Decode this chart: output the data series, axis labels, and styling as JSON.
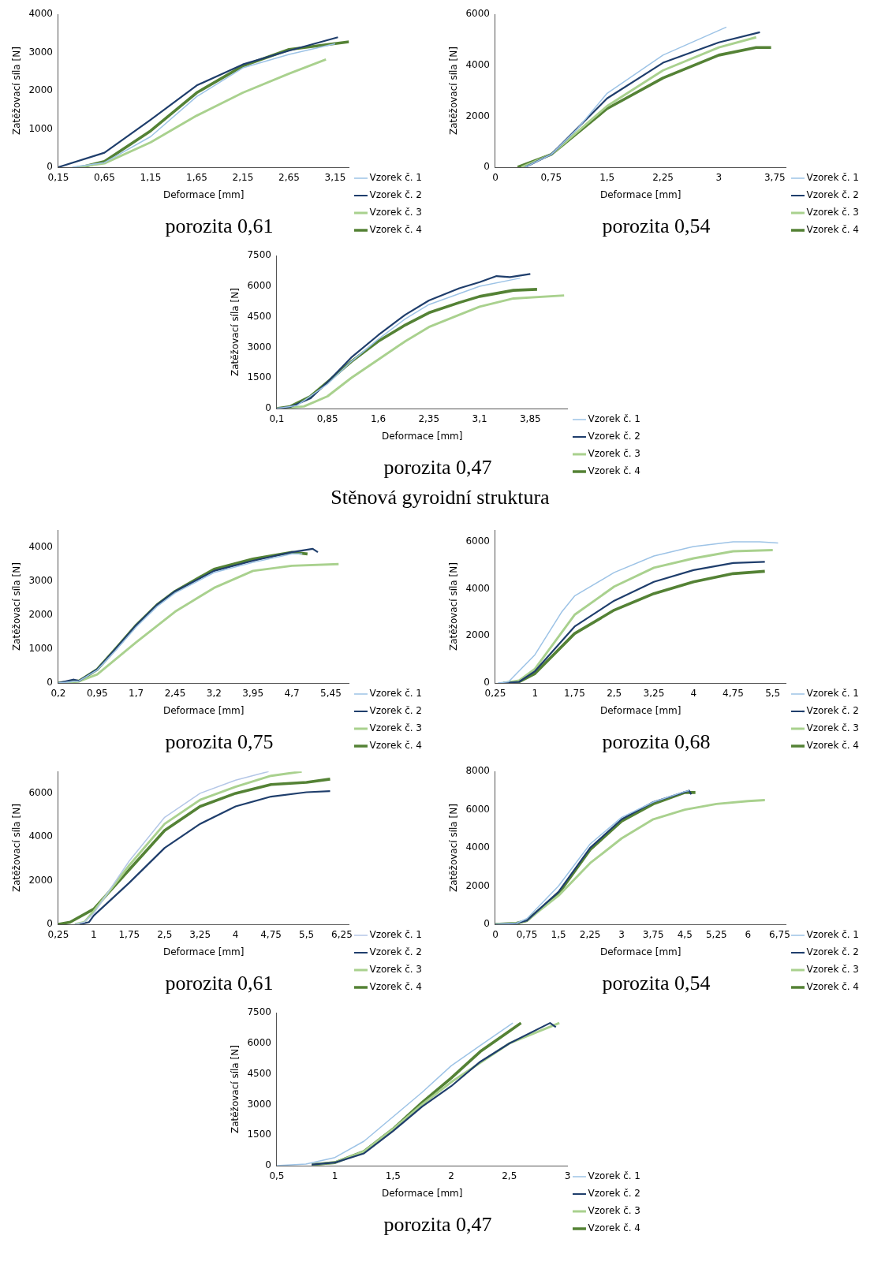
{
  "chart_data": [
    {
      "type": "line",
      "title": "porozita 0,61",
      "xlabel": "Deformace [mm]",
      "ylabel": "Zatěžovací síla [N]",
      "xlim": [
        0.15,
        3.3
      ],
      "xticks": [
        {
          "value": 0.15,
          "label": "0,15"
        },
        {
          "value": 0.65,
          "label": "0,65"
        },
        {
          "value": 1.15,
          "label": "1,15"
        },
        {
          "value": 1.65,
          "label": "1,65"
        },
        {
          "value": 2.15,
          "label": "2,15"
        },
        {
          "value": 2.65,
          "label": "2,65"
        },
        {
          "value": 3.15,
          "label": "3,15"
        }
      ],
      "ylim": [
        0,
        4000
      ],
      "yticks": [
        0,
        1000,
        2000,
        3000,
        4000
      ],
      "grid": false,
      "legend": "right",
      "marker": "none",
      "series": [
        {
          "name": "Vzorek č. 1",
          "color": "#9dc3e6",
          "x": [
            0.3,
            0.65,
            1.15,
            1.65,
            2.15,
            2.65,
            3.15
          ],
          "values": [
            0,
            120,
            800,
            1850,
            2600,
            2950,
            3230
          ]
        },
        {
          "name": "Vzorek č. 2",
          "color": "#1f3e6c",
          "x": [
            0.15,
            0.65,
            1.15,
            1.65,
            2.15,
            2.65,
            3.18
          ],
          "values": [
            0,
            380,
            1240,
            2140,
            2690,
            3050,
            3400
          ]
        },
        {
          "name": "Vzorek č. 3",
          "color": "#a9d18e",
          "x": [
            0.35,
            0.65,
            1.15,
            1.65,
            2.15,
            2.65,
            3.05
          ],
          "values": [
            0,
            100,
            650,
            1350,
            1950,
            2450,
            2820
          ]
        },
        {
          "name": "Vzorek č. 4",
          "color": "#548235",
          "x": [
            0.4,
            0.65,
            1.15,
            1.65,
            2.15,
            2.65,
            3.3
          ],
          "values": [
            0,
            150,
            950,
            1950,
            2650,
            3080,
            3280
          ]
        }
      ]
    },
    {
      "type": "line",
      "title": "porozita 0,54",
      "xlabel": "Deformace [mm]",
      "ylabel": "Zatěžovací síla [N]",
      "xlim": [
        0,
        3.9
      ],
      "xticks": [
        0,
        {
          "value": 0.75,
          "label": "0,75"
        },
        {
          "value": 1.5,
          "label": "1,5"
        },
        {
          "value": 2.25,
          "label": "2,25"
        },
        3,
        {
          "value": 3.75,
          "label": "3,75"
        }
      ],
      "ylim": [
        0,
        6000
      ],
      "yticks": [
        0,
        2000,
        4000,
        6000
      ],
      "grid": false,
      "legend": "right",
      "marker": "none",
      "series": [
        {
          "name": "Vzorek č. 1",
          "color": "#9dc3e6",
          "x": [
            0.4,
            0.75,
            1.1,
            1.5,
            2.25,
            3.1
          ],
          "values": [
            0,
            500,
            1500,
            2900,
            4400,
            5500
          ]
        },
        {
          "name": "Vzorek č. 2",
          "color": "#1f3e6c",
          "x": [
            0.4,
            0.75,
            1.5,
            2.25,
            3,
            3.55
          ],
          "values": [
            0,
            500,
            2700,
            4100,
            4900,
            5300
          ]
        },
        {
          "name": "Vzorek č. 3",
          "color": "#a9d18e",
          "x": [
            0.35,
            0.75,
            1.5,
            2.25,
            3,
            3.5
          ],
          "values": [
            0,
            500,
            2400,
            3800,
            4700,
            5100
          ]
        },
        {
          "name": "Vzorek č. 4",
          "color": "#548235",
          "x": [
            0.3,
            0.75,
            1.5,
            2.25,
            3,
            3.5,
            3.7
          ],
          "values": [
            0,
            500,
            2300,
            3500,
            4400,
            4700,
            4700
          ]
        }
      ]
    },
    {
      "type": "line",
      "title": "porozita 0,47",
      "annotations": [
        "Stěnová gyroidní struktura"
      ],
      "xlabel": "Deformace [mm]",
      "ylabel": "Zatěžovací síla [N]",
      "xlim": [
        0.1,
        4.4
      ],
      "xticks": [
        {
          "value": 0.1,
          "label": "0,1"
        },
        {
          "value": 0.85,
          "label": "0,85"
        },
        {
          "value": 1.6,
          "label": "1,6"
        },
        {
          "value": 2.35,
          "label": "2,35"
        },
        {
          "value": 3.1,
          "label": "3,1"
        },
        {
          "value": 3.85,
          "label": "3,85"
        }
      ],
      "ylim": [
        0,
        7500
      ],
      "yticks": [
        0,
        1500,
        3000,
        4500,
        6000,
        7500
      ],
      "grid": false,
      "legend": "right",
      "marker": "none",
      "series": [
        {
          "name": "Vzorek č. 1",
          "color": "#9dc3e6",
          "x": [
            0.1,
            0.4,
            0.85,
            1.2,
            1.6,
            2,
            2.35,
            3.1,
            3.7
          ],
          "values": [
            0,
            150,
            1200,
            2300,
            3400,
            4400,
            5100,
            6000,
            6400
          ]
        },
        {
          "name": "Vzorek č. 2",
          "color": "#1f3e6c",
          "x": [
            0.1,
            0.3,
            0.6,
            0.85,
            1.2,
            1.6,
            2,
            2.35,
            2.8,
            3.1,
            3.35,
            3.55,
            3.85
          ],
          "values": [
            0,
            80,
            500,
            1300,
            2500,
            3600,
            4600,
            5300,
            5900,
            6200,
            6500,
            6450,
            6600
          ]
        },
        {
          "name": "Vzorek č. 3",
          "color": "#a9d18e",
          "x": [
            0.1,
            0.5,
            0.85,
            1.2,
            1.6,
            2,
            2.35,
            2.8,
            3.1,
            3.6,
            4.35
          ],
          "values": [
            0,
            100,
            600,
            1500,
            2400,
            3300,
            4000,
            4600,
            5000,
            5400,
            5550
          ]
        },
        {
          "name": "Vzorek č. 4",
          "color": "#548235",
          "x": [
            0.1,
            0.3,
            0.6,
            0.85,
            1.2,
            1.6,
            2,
            2.35,
            2.8,
            3.1,
            3.6,
            3.95
          ],
          "values": [
            0,
            100,
            600,
            1300,
            2300,
            3300,
            4100,
            4700,
            5200,
            5500,
            5800,
            5850
          ]
        }
      ]
    },
    {
      "type": "line",
      "title": "porozita 0,75",
      "xlabel": "Deformace [mm]",
      "ylabel": "Zatěžovací síla [N]",
      "xlim": [
        0.2,
        5.8
      ],
      "xticks": [
        {
          "value": 0.2,
          "label": "0,2"
        },
        {
          "value": 0.95,
          "label": "0,95"
        },
        {
          "value": 1.7,
          "label": "1,7"
        },
        {
          "value": 2.45,
          "label": "2,45"
        },
        {
          "value": 3.2,
          "label": "3,2"
        },
        {
          "value": 3.95,
          "label": "3,95"
        },
        {
          "value": 4.7,
          "label": "4,7"
        },
        {
          "value": 5.45,
          "label": "5,45"
        }
      ],
      "ylim": [
        0,
        4500
      ],
      "yticks": [
        0,
        1000,
        2000,
        3000,
        4000
      ],
      "grid": false,
      "legend": "right",
      "marker": "none",
      "series": [
        {
          "name": "Vzorek č. 1",
          "color": "#9dc3e6",
          "x": [
            0.2,
            0.6,
            0.95,
            1.3,
            1.7,
            2.1,
            2.45,
            3.2,
            3.95,
            4.7,
            4.9
          ],
          "values": [
            0,
            60,
            380,
            950,
            1650,
            2250,
            2650,
            3250,
            3550,
            3800,
            3800
          ]
        },
        {
          "name": "Vzorek č. 2",
          "color": "#1f3e6c",
          "x": [
            0.2,
            0.5,
            0.6,
            0.95,
            1.3,
            1.7,
            2.1,
            2.45,
            3.2,
            3.95,
            4.7,
            5.1,
            5.2
          ],
          "values": [
            0,
            100,
            60,
            400,
            1000,
            1700,
            2300,
            2700,
            3300,
            3600,
            3850,
            3950,
            3850
          ]
        },
        {
          "name": "Vzorek č. 3",
          "color": "#a9d18e",
          "x": [
            0.2,
            0.6,
            0.95,
            1.7,
            2.45,
            3.2,
            3.95,
            4.7,
            5.6
          ],
          "values": [
            0,
            50,
            250,
            1200,
            2100,
            2800,
            3300,
            3450,
            3500
          ]
        },
        {
          "name": "Vzorek č. 4",
          "color": "#548235",
          "x": [
            0.2,
            0.6,
            0.95,
            1.3,
            1.7,
            2.1,
            2.45,
            3.2,
            3.95,
            4.7,
            5
          ],
          "values": [
            0,
            60,
            400,
            1000,
            1700,
            2300,
            2700,
            3350,
            3650,
            3850,
            3800
          ]
        }
      ]
    },
    {
      "type": "line",
      "title": "porozita 0,68",
      "xlabel": "Deformace [mm]",
      "ylabel": "Zatěžovací síla [N]",
      "xlim": [
        0.25,
        5.75
      ],
      "xticks": [
        {
          "value": 0.25,
          "label": "0,25"
        },
        1,
        {
          "value": 1.75,
          "label": "1,75"
        },
        {
          "value": 2.5,
          "label": "2,5"
        },
        {
          "value": 3.25,
          "label": "3,25"
        },
        4,
        {
          "value": 4.75,
          "label": "4,75"
        },
        {
          "value": 5.5,
          "label": "5,5"
        }
      ],
      "ylim": [
        0,
        6500
      ],
      "yticks": [
        0,
        2000,
        4000,
        6000
      ],
      "grid": false,
      "legend": "right",
      "marker": "none",
      "series": [
        {
          "name": "Vzorek č. 1",
          "color": "#9dc3e6",
          "x": [
            0.3,
            0.5,
            1,
            1.5,
            1.75,
            2.5,
            3.25,
            4,
            4.75,
            5.25,
            5.6
          ],
          "values": [
            0,
            50,
            1200,
            3000,
            3700,
            4700,
            5400,
            5800,
            6000,
            6000,
            5950
          ]
        },
        {
          "name": "Vzorek č. 2",
          "color": "#1f3e6c",
          "x": [
            0.4,
            0.7,
            1,
            1.75,
            2.5,
            3.25,
            4,
            4.75,
            5.35
          ],
          "values": [
            0,
            50,
            500,
            2400,
            3500,
            4300,
            4800,
            5100,
            5150
          ]
        },
        {
          "name": "Vzorek č. 3",
          "color": "#a9d18e",
          "x": [
            0.4,
            0.7,
            1,
            1.75,
            2.5,
            3.25,
            4,
            4.75,
            5.5
          ],
          "values": [
            0,
            100,
            600,
            2900,
            4100,
            4900,
            5300,
            5600,
            5650
          ]
        },
        {
          "name": "Vzorek č. 4",
          "color": "#548235",
          "x": [
            0.4,
            0.7,
            1,
            1.75,
            2.5,
            3.25,
            4,
            4.75,
            5.35
          ],
          "values": [
            0,
            50,
            400,
            2100,
            3100,
            3800,
            4300,
            4650,
            4750
          ]
        }
      ]
    },
    {
      "type": "line",
      "title": "porozita 0,61",
      "xlabel": "Deformace [mm]",
      "ylabel": "Zatěžovací síla [N]",
      "xlim": [
        0.25,
        6.4
      ],
      "xticks": [
        {
          "value": 0.25,
          "label": "0,25"
        },
        1,
        {
          "value": 1.75,
          "label": "1,75"
        },
        {
          "value": 2.5,
          "label": "2,5"
        },
        {
          "value": 3.25,
          "label": "3,25"
        },
        4,
        {
          "value": 4.75,
          "label": "4,75"
        },
        {
          "value": 5.5,
          "label": "5,5"
        },
        {
          "value": 6.25,
          "label": "6,25"
        }
      ],
      "ylim": [
        0,
        7000
      ],
      "yticks": [
        0,
        2000,
        4000,
        6000
      ],
      "grid": false,
      "legend": "right",
      "marker": "none",
      "series": [
        {
          "name": "Vzorek č. 1",
          "color": "#b4c7e7",
          "x": [
            0.6,
            0.8,
            1,
            1.75,
            2.5,
            3.25,
            4,
            4.7
          ],
          "values": [
            0,
            100,
            500,
            2900,
            4900,
            6000,
            6600,
            7000
          ]
        },
        {
          "name": "Vzorek č. 2",
          "color": "#1f3e6c",
          "x": [
            0.7,
            0.9,
            1,
            1.75,
            2.5,
            3.25,
            4,
            4.75,
            5.5,
            6
          ],
          "values": [
            0,
            100,
            400,
            1900,
            3500,
            4600,
            5400,
            5850,
            6050,
            6100
          ]
        },
        {
          "name": "Vzorek č. 3",
          "color": "#a9d18e",
          "x": [
            0.6,
            0.8,
            1,
            1.75,
            2.5,
            3.25,
            4,
            4.75,
            5.4
          ],
          "values": [
            0,
            100,
            600,
            2700,
            4600,
            5700,
            6300,
            6800,
            7000
          ]
        },
        {
          "name": "Vzorek č. 4",
          "color": "#548235",
          "x": [
            0.25,
            0.5,
            1,
            1.75,
            2.5,
            3.25,
            4,
            4.75,
            5.5,
            6
          ],
          "values": [
            0,
            100,
            700,
            2500,
            4300,
            5400,
            6000,
            6400,
            6500,
            6650
          ]
        }
      ]
    },
    {
      "type": "line",
      "title": "porozita 0,54",
      "xlabel": "Deformace [mm]",
      "ylabel": "Zatěžovací síla [N]",
      "xlim": [
        0,
        6.9
      ],
      "xticks": [
        0,
        {
          "value": 0.75,
          "label": "0,75"
        },
        {
          "value": 1.5,
          "label": "1,5"
        },
        {
          "value": 2.25,
          "label": "2,25"
        },
        3,
        {
          "value": 3.75,
          "label": "3,75"
        },
        {
          "value": 4.5,
          "label": "4,5"
        },
        {
          "value": 5.25,
          "label": "5,25"
        },
        6,
        {
          "value": 6.75,
          "label": "6,75"
        }
      ],
      "ylim": [
        0,
        8000
      ],
      "yticks": [
        0,
        2000,
        4000,
        6000,
        8000
      ],
      "grid": false,
      "legend": "right",
      "marker": "none",
      "series": [
        {
          "name": "Vzorek č. 1",
          "color": "#9dc3e6",
          "x": [
            0,
            0.5,
            0.75,
            1.5,
            2.25,
            3,
            3.75,
            4.5,
            4.6
          ],
          "values": [
            0,
            50,
            300,
            2000,
            4200,
            5600,
            6400,
            6950,
            7000
          ]
        },
        {
          "name": "Vzorek č. 2",
          "color": "#1f3e6c",
          "x": [
            0,
            0.5,
            0.75,
            1.5,
            2.25,
            3,
            3.75,
            4.6,
            4.65
          ],
          "values": [
            0,
            50,
            200,
            1700,
            4000,
            5500,
            6400,
            7000,
            6800
          ]
        },
        {
          "name": "Vzorek č. 3",
          "color": "#a9d18e",
          "x": [
            0,
            0.5,
            0.75,
            1.5,
            2.25,
            3,
            3.75,
            4.5,
            5.25,
            6,
            6.4
          ],
          "values": [
            0,
            50,
            200,
            1500,
            3200,
            4500,
            5500,
            6000,
            6300,
            6450,
            6500
          ]
        },
        {
          "name": "Vzorek č. 4",
          "color": "#548235",
          "x": [
            0,
            0.5,
            0.75,
            1.5,
            2.25,
            3,
            3.75,
            4.5,
            4.75
          ],
          "values": [
            0,
            50,
            200,
            1600,
            3900,
            5400,
            6300,
            6900,
            6900
          ]
        }
      ]
    },
    {
      "type": "line",
      "title": "porozita 0,47",
      "xlabel": "Deformace [mm]",
      "ylabel": "Zatěžovací síla [N]",
      "xlim": [
        0.5,
        3
      ],
      "xticks": [
        {
          "value": 0.5,
          "label": "0,5"
        },
        1,
        {
          "value": 1.5,
          "label": "1,5"
        },
        2,
        {
          "value": 2.5,
          "label": "2,5"
        },
        3
      ],
      "ylim": [
        0,
        7500
      ],
      "yticks": [
        0,
        1500,
        3000,
        4500,
        6000,
        7500
      ],
      "grid": false,
      "legend": "right",
      "marker": "none",
      "series": [
        {
          "name": "Vzorek č. 1",
          "color": "#9dc3e6",
          "x": [
            0.5,
            0.75,
            1,
            1.25,
            1.5,
            1.75,
            2,
            2.25,
            2.53
          ],
          "values": [
            0,
            80,
            400,
            1200,
            2400,
            3600,
            4900,
            5900,
            7000
          ]
        },
        {
          "name": "Vzorek č. 2",
          "color": "#1f3e6c",
          "x": [
            0.8,
            1,
            1.25,
            1.5,
            1.75,
            2,
            2.25,
            2.5,
            2.85,
            2.9
          ],
          "values": [
            50,
            150,
            600,
            1700,
            2900,
            3900,
            5100,
            6000,
            7000,
            6800
          ]
        },
        {
          "name": "Vzorek č. 3",
          "color": "#a9d18e",
          "x": [
            0.8,
            1,
            1.25,
            1.5,
            1.75,
            2,
            2.5,
            2.93
          ],
          "values": [
            50,
            150,
            700,
            1800,
            3000,
            4100,
            6000,
            7000
          ]
        },
        {
          "name": "Vzorek č. 4",
          "color": "#548235",
          "x": [
            0.8,
            1,
            1.25,
            1.5,
            1.75,
            2,
            2.25,
            2.5,
            2.6
          ],
          "values": [
            50,
            150,
            700,
            1800,
            3100,
            4300,
            5600,
            6600,
            7000
          ]
        }
      ]
    }
  ]
}
